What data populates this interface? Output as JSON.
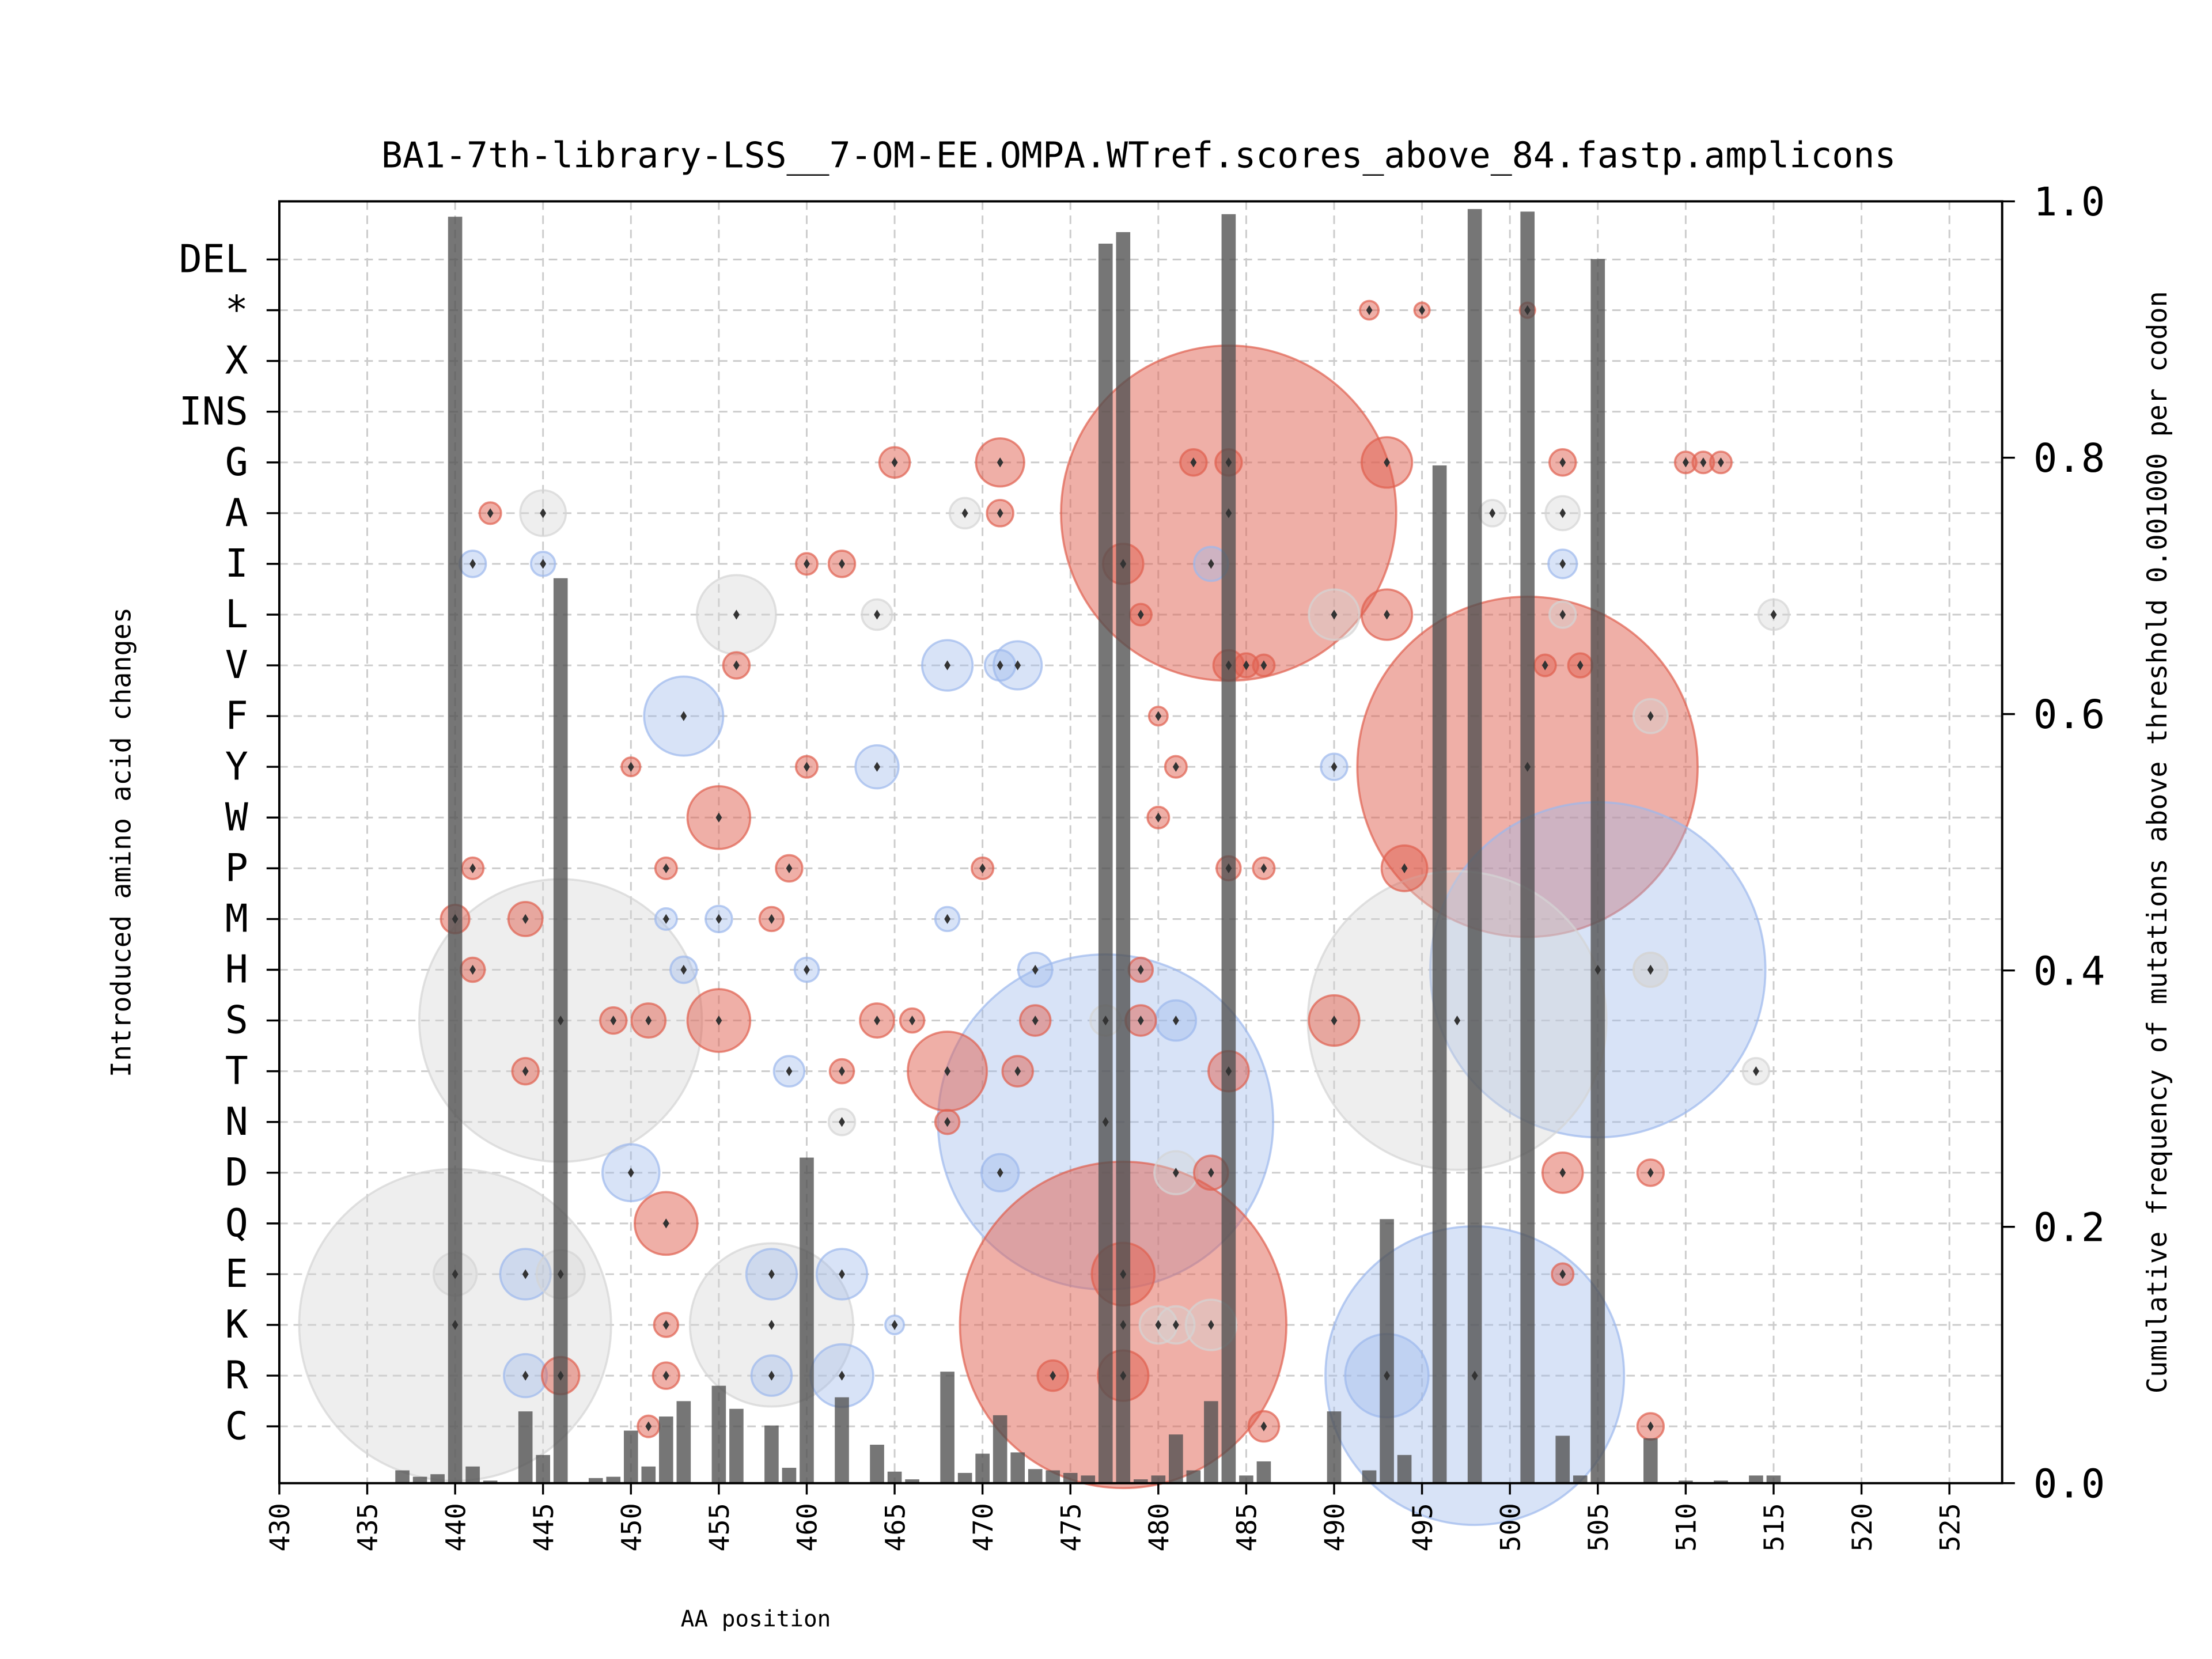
{
  "chart_data": {
    "type": "scatter",
    "title": "BA1-7th-library-LSS__7-OM-EE.OMPA.WTref.scores_above_84.fastp.amplicons",
    "xlabel": "AA position",
    "ylabel": "Introduced amino acid changes",
    "y2label": "Cumulative frequency of mutations above threshold 0.001000 per codon",
    "xlim": [
      430,
      528
    ],
    "y2lim": [
      0,
      1.0
    ],
    "xticks": [
      430,
      435,
      440,
      445,
      450,
      455,
      460,
      465,
      470,
      475,
      480,
      485,
      490,
      495,
      500,
      505,
      510,
      515,
      520,
      525
    ],
    "y2ticks": [
      "0.0",
      "0.2",
      "0.4",
      "0.6",
      "0.8",
      "1.0"
    ],
    "categories": [
      "DEL",
      "*",
      "X",
      "INS",
      "G",
      "A",
      "I",
      "L",
      "V",
      "F",
      "Y",
      "W",
      "P",
      "M",
      "H",
      "S",
      "T",
      "N",
      "D",
      "Q",
      "E",
      "K",
      "R",
      "C"
    ],
    "grid": true,
    "colors": {
      "red": "#e0604f",
      "blue": "#9db8ec",
      "gray": "#d4d4d4",
      "bar": "#505050"
    },
    "bars": [
      [
        437,
        0.01
      ],
      [
        438,
        0.005
      ],
      [
        439,
        0.007
      ],
      [
        440,
        0.988
      ],
      [
        441,
        0.013
      ],
      [
        442,
        0.002
      ],
      [
        444,
        0.056
      ],
      [
        445,
        0.022
      ],
      [
        446,
        0.706
      ],
      [
        448,
        0.004
      ],
      [
        449,
        0.005
      ],
      [
        450,
        0.041
      ],
      [
        451,
        0.013
      ],
      [
        452,
        0.052
      ],
      [
        453,
        0.064
      ],
      [
        455,
        0.076
      ],
      [
        456,
        0.058
      ],
      [
        458,
        0.045
      ],
      [
        459,
        0.012
      ],
      [
        460,
        0.254
      ],
      [
        462,
        0.067
      ],
      [
        464,
        0.03
      ],
      [
        465,
        0.009
      ],
      [
        466,
        0.003
      ],
      [
        468,
        0.087
      ],
      [
        469,
        0.008
      ],
      [
        470,
        0.023
      ],
      [
        471,
        0.053
      ],
      [
        472,
        0.024
      ],
      [
        473,
        0.011
      ],
      [
        474,
        0.01
      ],
      [
        475,
        0.008
      ],
      [
        476,
        0.006
      ],
      [
        477,
        0.967
      ],
      [
        478,
        0.976
      ],
      [
        479,
        0.003
      ],
      [
        480,
        0.006
      ],
      [
        481,
        0.038
      ],
      [
        482,
        0.01
      ],
      [
        483,
        0.064
      ],
      [
        484,
        0.99
      ],
      [
        485,
        0.006
      ],
      [
        486,
        0.017
      ],
      [
        490,
        0.056
      ],
      [
        492,
        0.01
      ],
      [
        493,
        0.206
      ],
      [
        494,
        0.022
      ],
      [
        496,
        0.794
      ],
      [
        498,
        0.994
      ],
      [
        501,
        0.992
      ],
      [
        503,
        0.037
      ],
      [
        504,
        0.006
      ],
      [
        505,
        0.955
      ],
      [
        508,
        0.035
      ],
      [
        510,
        0.002
      ],
      [
        512,
        0.002
      ],
      [
        514,
        0.006
      ],
      [
        515,
        0.006
      ]
    ],
    "bubbles": [
      [
        484,
        "A",
        "red",
        0.97
      ],
      [
        501,
        "Y",
        "red",
        1.0
      ],
      [
        505,
        "H",
        "blue",
        0.97
      ],
      [
        478,
        "K",
        "red",
        0.92
      ],
      [
        477,
        "N",
        "blue",
        0.97
      ],
      [
        440,
        "K",
        "gray",
        0.84
      ],
      [
        446,
        "S",
        "gray",
        0.69
      ],
      [
        497,
        "S",
        "gray",
        0.77
      ],
      [
        498,
        "R",
        "blue",
        0.77
      ],
      [
        458,
        "K",
        "gray",
        0.23
      ],
      [
        456,
        "L",
        "gray",
        0.054
      ],
      [
        453,
        "F",
        "blue",
        0.054
      ],
      [
        455,
        "W",
        "red",
        0.034
      ],
      [
        455,
        "S",
        "red",
        0.034
      ],
      [
        452,
        "Q",
        "red",
        0.034
      ],
      [
        468,
        "T",
        "red",
        0.054
      ],
      [
        471,
        "G",
        "red",
        0.02
      ],
      [
        493,
        "G",
        "red",
        0.022
      ],
      [
        493,
        "L",
        "red",
        0.022
      ],
      [
        478,
        "E",
        "red",
        0.034
      ],
      [
        478,
        "R",
        "red",
        0.022
      ],
      [
        478,
        "I",
        "red",
        0.014
      ],
      [
        494,
        "P",
        "red",
        0.018
      ],
      [
        490,
        "S",
        "red",
        0.022
      ],
      [
        483,
        "K",
        "gray",
        0.022
      ],
      [
        481,
        "D",
        "gray",
        0.016
      ],
      [
        483,
        "D",
        "red",
        0.01
      ],
      [
        503,
        "D",
        "red",
        0.014
      ],
      [
        508,
        "D",
        "red",
        0.006
      ],
      [
        508,
        "F",
        "gray",
        0.01
      ],
      [
        508,
        "H",
        "gray",
        0.01
      ],
      [
        462,
        "R",
        "blue",
        0.034
      ],
      [
        462,
        "E",
        "blue",
        0.022
      ],
      [
        458,
        "E",
        "blue",
        0.022
      ],
      [
        458,
        "R",
        "blue",
        0.014
      ],
      [
        450,
        "D",
        "blue",
        0.028
      ],
      [
        444,
        "E",
        "blue",
        0.022
      ],
      [
        444,
        "R",
        "blue",
        0.016
      ],
      [
        446,
        "R",
        "red",
        0.012
      ],
      [
        464,
        "Y",
        "blue",
        0.016
      ],
      [
        468,
        "V",
        "blue",
        0.022
      ],
      [
        472,
        "V",
        "blue",
        0.02
      ],
      [
        445,
        "A",
        "gray",
        0.018
      ],
      [
        440,
        "M",
        "red",
        0.007
      ],
      [
        444,
        "M",
        "red",
        0.01
      ],
      [
        441,
        "H",
        "red",
        0.005
      ],
      [
        471,
        "D",
        "blue",
        0.012
      ],
      [
        503,
        "I",
        "blue",
        0.007
      ],
      [
        503,
        "A",
        "gray",
        0.01
      ],
      [
        490,
        "L",
        "gray",
        0.022
      ],
      [
        473,
        "H",
        "blue",
        0.01
      ],
      [
        481,
        "K",
        "gray",
        0.012
      ],
      [
        477,
        "S",
        "gray",
        0.008
      ],
      [
        465,
        "G",
        "red",
        0.008
      ],
      [
        482,
        "G",
        "red",
        0.006
      ],
      [
        484,
        "G",
        "red",
        0.006
      ],
      [
        503,
        "G",
        "red",
        0.006
      ],
      [
        510,
        "G",
        "red",
        0.004
      ],
      [
        511,
        "G",
        "red",
        0.004
      ],
      [
        512,
        "G",
        "red",
        0.004
      ],
      [
        442,
        "A",
        "red",
        0.004
      ],
      [
        471,
        "A",
        "red",
        0.006
      ],
      [
        469,
        "A",
        "gray",
        0.008
      ],
      [
        481,
        "S",
        "blue",
        0.014
      ],
      [
        479,
        "S",
        "red",
        0.008
      ],
      [
        473,
        "S",
        "red",
        0.008
      ],
      [
        464,
        "S",
        "red",
        0.01
      ],
      [
        451,
        "S",
        "red",
        0.01
      ],
      [
        449,
        "S",
        "red",
        0.006
      ],
      [
        466,
        "S",
        "red",
        0.005
      ],
      [
        460,
        "I",
        "red",
        0.004
      ],
      [
        462,
        "I",
        "red",
        0.006
      ],
      [
        464,
        "L",
        "gray",
        0.008
      ],
      [
        503,
        "L",
        "gray",
        0.006
      ],
      [
        515,
        "L",
        "gray",
        0.008
      ],
      [
        504,
        "V",
        "red",
        0.005
      ],
      [
        502,
        "V",
        "red",
        0.004
      ],
      [
        456,
        "V",
        "red",
        0.006
      ],
      [
        484,
        "V",
        "red",
        0.008
      ],
      [
        485,
        "V",
        "red",
        0.005
      ],
      [
        486,
        "V",
        "red",
        0.004
      ],
      [
        471,
        "V",
        "blue",
        0.008
      ],
      [
        484,
        "T",
        "red",
        0.014
      ],
      [
        472,
        "T",
        "red",
        0.008
      ],
      [
        462,
        "T",
        "red",
        0.005
      ],
      [
        444,
        "T",
        "red",
        0.006
      ],
      [
        459,
        "T",
        "blue",
        0.008
      ],
      [
        514,
        "T",
        "gray",
        0.006
      ],
      [
        484,
        "P",
        "red",
        0.005
      ],
      [
        486,
        "P",
        "red",
        0.004
      ],
      [
        459,
        "P",
        "red",
        0.006
      ],
      [
        441,
        "P",
        "red",
        0.004
      ],
      [
        452,
        "P",
        "red",
        0.004
      ],
      [
        470,
        "P",
        "red",
        0.004
      ],
      [
        480,
        "W",
        "red",
        0.004
      ],
      [
        481,
        "Y",
        "red",
        0.004
      ],
      [
        460,
        "Y",
        "red",
        0.004
      ],
      [
        450,
        "Y",
        "red",
        0.003
      ],
      [
        490,
        "Y",
        "blue",
        0.006
      ],
      [
        480,
        "F",
        "red",
        0.003
      ],
      [
        458,
        "M",
        "red",
        0.005
      ],
      [
        455,
        "M",
        "blue",
        0.006
      ],
      [
        452,
        "M",
        "blue",
        0.004
      ],
      [
        468,
        "M",
        "blue",
        0.005
      ],
      [
        479,
        "H",
        "red",
        0.005
      ],
      [
        453,
        "H",
        "blue",
        0.006
      ],
      [
        460,
        "H",
        "blue",
        0.005
      ],
      [
        508,
        "H",
        "gray",
        0.01
      ],
      [
        479,
        "L",
        "red",
        0.004
      ],
      [
        441,
        "I",
        "blue",
        0.006
      ],
      [
        445,
        "I",
        "blue",
        0.005
      ],
      [
        483,
        "I",
        "blue",
        0.01
      ],
      [
        492,
        "*",
        "red",
        0.003
      ],
      [
        495,
        "*",
        "red",
        0.002
      ],
      [
        501,
        "*",
        "red",
        0.002
      ],
      [
        486,
        "C",
        "red",
        0.008
      ],
      [
        508,
        "C",
        "red",
        0.006
      ],
      [
        451,
        "C",
        "red",
        0.004
      ],
      [
        503,
        "E",
        "red",
        0.004
      ],
      [
        452,
        "K",
        "red",
        0.005
      ],
      [
        452,
        "R",
        "red",
        0.006
      ],
      [
        474,
        "R",
        "red",
        0.008
      ],
      [
        465,
        "K",
        "blue",
        0.003
      ],
      [
        480,
        "K",
        "gray",
        0.012
      ],
      [
        462,
        "N",
        "gray",
        0.006
      ],
      [
        468,
        "N",
        "red",
        0.005
      ],
      [
        446,
        "E",
        "gray",
        0.02
      ],
      [
        440,
        "E",
        "gray",
        0.016
      ],
      [
        493,
        "R",
        "blue",
        0.06
      ],
      [
        499,
        "A",
        "gray",
        0.006
      ]
    ]
  }
}
